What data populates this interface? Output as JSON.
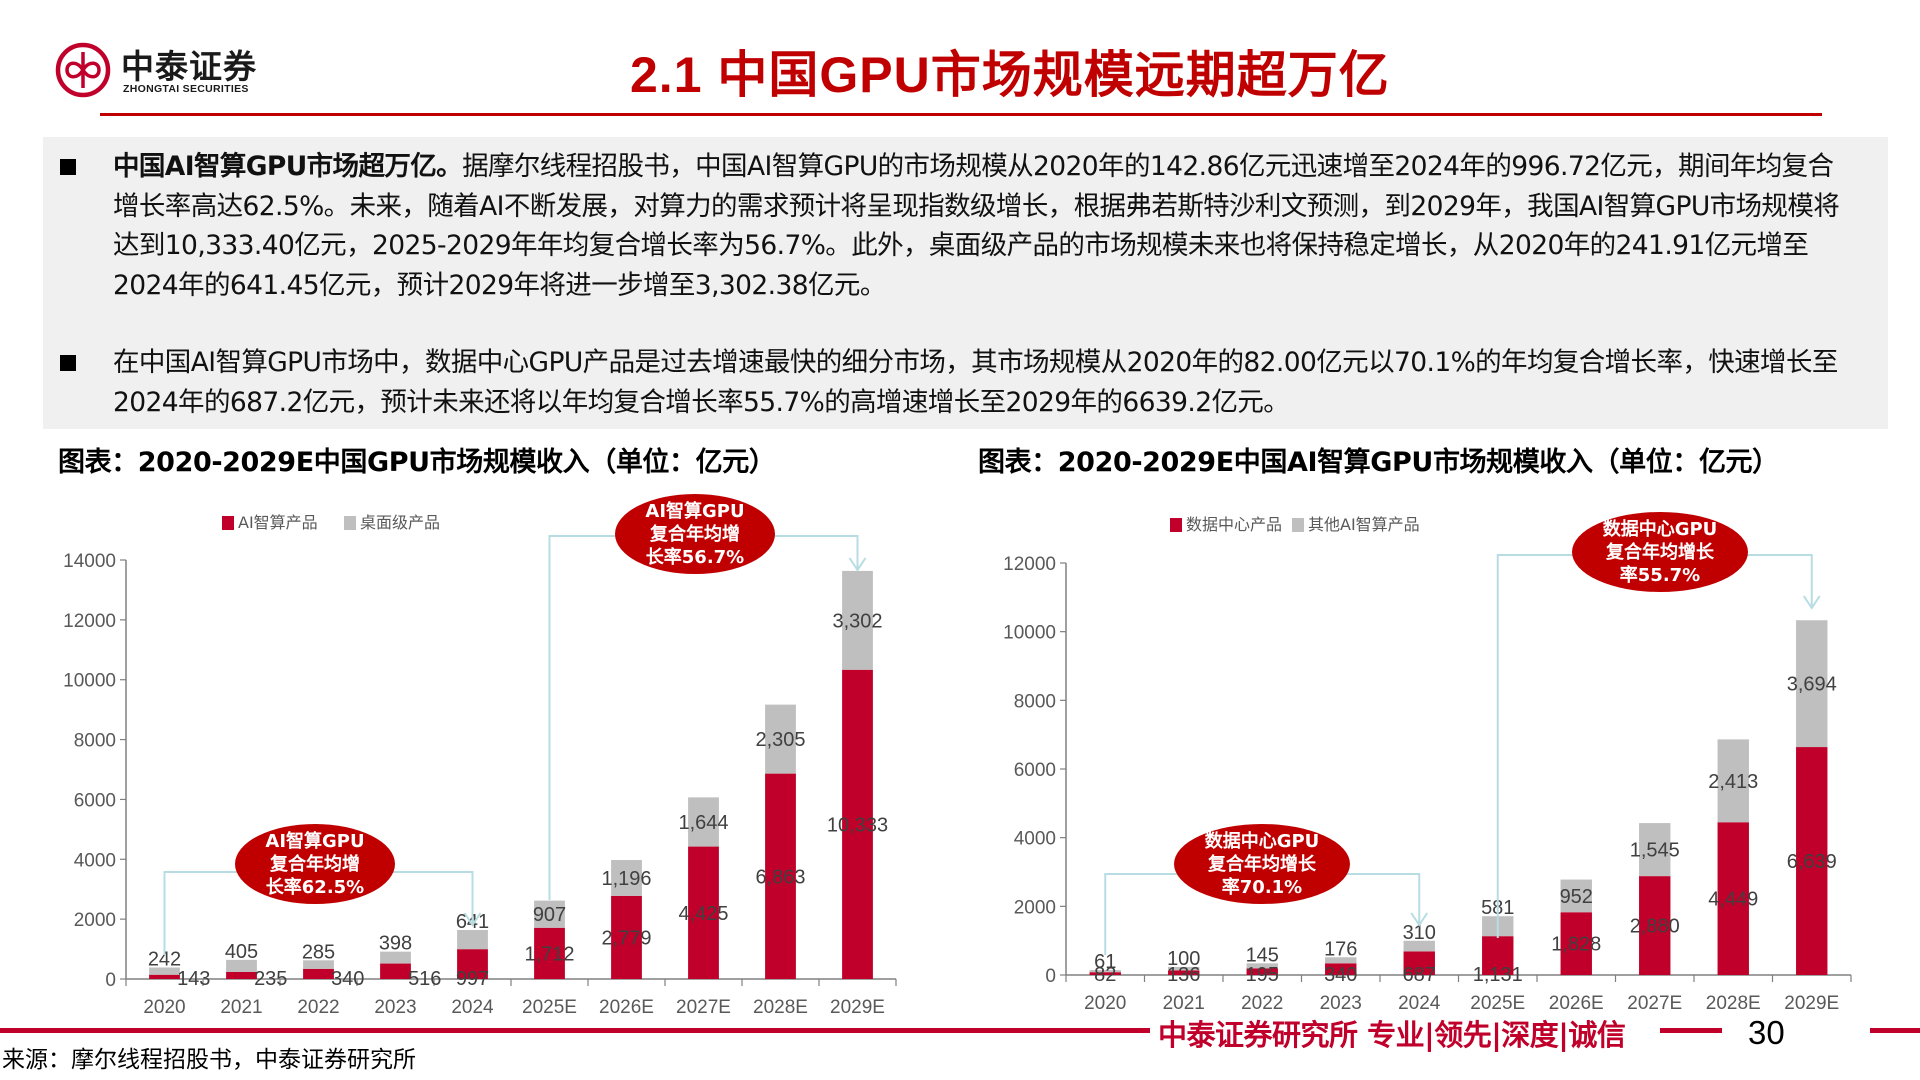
{
  "header": {
    "logo_cn": "中泰证券",
    "logo_en": "ZHONGTAI SECURITIES",
    "title": "2.1 中国GPU市场规模远期超万亿"
  },
  "summary": {
    "bullets": [
      {
        "lead": "中国AI智算GPU市场超万亿。",
        "text": "据摩尔线程招股书，中国AI智算GPU的市场规模从2020年的142.86亿元迅速增至2024年的996.72亿元，期间年均复合增长率高达62.5%。未来，随着AI不断发展，对算力的需求预计将呈现指数级增长，根据弗若斯特沙利文预测，到2029年，我国AI智算GPU市场规模将达到10,333.40亿元，2025-2029年年均复合增长率为56.7%。此外，桌面级产品的市场规模未来也将保持稳定增长，从2020年的241.91亿元增至2024年的641.45亿元，预计2029年将进一步增至3,302.38亿元。"
      },
      {
        "lead": "",
        "text": "在中国AI智算GPU市场中，数据中心GPU产品是过去增速最快的细分市场，其市场规模从2020年的82.00亿元以70.1%的年均复合增长率，快速增长至2024年的687.2亿元，预计未来还将以年均复合增长率55.7%的高增速增长至2029年的6639.2亿元。"
      }
    ]
  },
  "charts": {
    "left_title": "图表：2020-2029E中国GPU市场规模收入（单位：亿元）",
    "right_title": "图表：2020-2029E中国AI智算GPU市场规模收入（单位：亿元）"
  },
  "chart_data": [
    {
      "type": "bar",
      "stacked": true,
      "title": "2020-2029E中国GPU市场规模收入（单位：亿元）",
      "xlabel": "",
      "ylabel": "",
      "categories": [
        "2020",
        "2021",
        "2022",
        "2023",
        "2024",
        "2025E",
        "2026E",
        "2027E",
        "2028E",
        "2029E"
      ],
      "series": [
        {
          "name": "AI智算产品",
          "color": "#c0002a",
          "values": [
            143,
            235,
            340,
            516,
            997,
            1712,
            2779,
            4425,
            6863,
            10333
          ],
          "labels": [
            "143",
            "235",
            "340",
            "516",
            "997",
            "1,712",
            "2,779",
            "4,425",
            "6,863",
            "10,333"
          ]
        },
        {
          "name": "桌面级产品",
          "color": "#bfbfbf",
          "values": [
            242,
            405,
            285,
            398,
            641,
            907,
            1196,
            1644,
            2305,
            3302
          ],
          "labels": [
            "242",
            "405",
            "285",
            "398",
            "641",
            "907",
            "1,196",
            "1,644",
            "2,305",
            "3,302"
          ]
        }
      ],
      "ylim": [
        0,
        14000
      ],
      "yticks": [
        0,
        2000,
        4000,
        6000,
        8000,
        10000,
        12000,
        14000
      ],
      "grid": false,
      "legend_position": "top",
      "annotations": [
        {
          "text": "AI智算GPU复合年均增长率62.5%",
          "lines": [
            "AI智算GPU",
            "复合年均增",
            "长率62.5%"
          ],
          "from": "2020",
          "to": "2024"
        },
        {
          "text": "AI智算GPU复合年均增长率56.7%",
          "lines": [
            "AI智算GPU",
            "复合年均增",
            "长率56.7%"
          ],
          "from": "2025E",
          "to": "2029E"
        }
      ]
    },
    {
      "type": "bar",
      "stacked": true,
      "title": "2020-2029E中国AI智算GPU市场规模收入（单位：亿元）",
      "xlabel": "",
      "ylabel": "",
      "categories": [
        "2020",
        "2021",
        "2022",
        "2023",
        "2024",
        "2025E",
        "2026E",
        "2027E",
        "2028E",
        "2029E"
      ],
      "series": [
        {
          "name": "数据中心产品",
          "color": "#c0002a",
          "values": [
            82,
            136,
            195,
            340,
            687,
            1131,
            1828,
            2880,
            4449,
            6639
          ],
          "labels": [
            "82",
            "136",
            "195",
            "340",
            "687",
            "1,131",
            "1,828",
            "2,880",
            "4,449",
            "6,639"
          ]
        },
        {
          "name": "其他AI智算产品",
          "color": "#bfbfbf",
          "values": [
            61,
            100,
            145,
            176,
            310,
            581,
            952,
            1545,
            2413,
            3694
          ],
          "labels": [
            "61",
            "100",
            "145",
            "176",
            "310",
            "581",
            "952",
            "1,545",
            "2,413",
            "3,694"
          ]
        }
      ],
      "ylim": [
        0,
        12000
      ],
      "yticks": [
        0,
        2000,
        4000,
        6000,
        8000,
        10000,
        12000
      ],
      "grid": false,
      "legend_position": "top",
      "annotations": [
        {
          "text": "数据中心GPU复合年均增长率70.1%",
          "lines": [
            "数据中心GPU",
            "复合年均增长",
            "率70.1%"
          ],
          "from": "2020",
          "to": "2024"
        },
        {
          "text": "数据中心GPU复合年均增长率55.7%",
          "lines": [
            "数据中心GPU",
            "复合年均增长",
            "率55.7%"
          ],
          "from": "2025E",
          "to": "2029E"
        }
      ]
    }
  ],
  "footer": {
    "slogan": "中泰证券研究所 专业|领先|深度|诚信",
    "page_number": "30",
    "source": "来源：摩尔线程招股书，中泰证券研究所"
  },
  "colors": {
    "brand_red": "#c00000",
    "bar_red": "#c0002a",
    "bar_gray": "#bfbfbf",
    "bubble_red": "#c00000",
    "bracket": "#b7dde3",
    "panel_bg": "#f0f0f0"
  }
}
